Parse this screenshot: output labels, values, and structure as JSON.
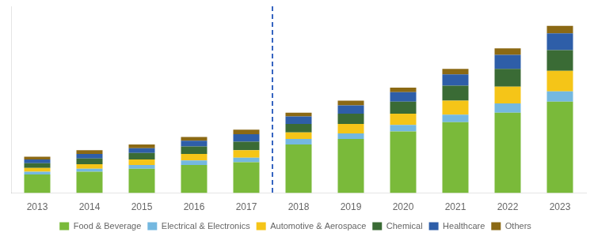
{
  "chart_data": {
    "type": "bar",
    "stacked": true,
    "categories": [
      "2013",
      "2014",
      "2015",
      "2016",
      "2017",
      "2018",
      "2019",
      "2020",
      "2021",
      "2022",
      "2023"
    ],
    "series": [
      {
        "name": "Food & Beverage",
        "color": "#7aba3a",
        "values": [
          20,
          23,
          26,
          30,
          33,
          52,
          58,
          66,
          76,
          86,
          98
        ]
      },
      {
        "name": "Electrical & Electronics",
        "color": "#74b8e0",
        "values": [
          3,
          3,
          4,
          5,
          5,
          6,
          6,
          7,
          8,
          10,
          11
        ]
      },
      {
        "name": "Automotive & Aerospace",
        "color": "#f5c518",
        "values": [
          4,
          5,
          6,
          7,
          8,
          7,
          10,
          12,
          15,
          18,
          22
        ]
      },
      {
        "name": "Chemical",
        "color": "#3a6b35",
        "values": [
          5,
          6,
          7,
          8,
          9,
          9,
          11,
          13,
          16,
          19,
          22
        ]
      },
      {
        "name": "Healthcare",
        "color": "#2e5ea8",
        "values": [
          4,
          5,
          5,
          6,
          8,
          8,
          9,
          10,
          12,
          15,
          18
        ]
      },
      {
        "name": "Others",
        "color": "#8b6914",
        "values": [
          3,
          4,
          4,
          4,
          5,
          4,
          5,
          5,
          6,
          7,
          8
        ]
      }
    ],
    "ylim": [
      0,
      200
    ],
    "tick_labels": "x",
    "grid": false,
    "legend": "bottom",
    "divider": {
      "after": "2017",
      "color": "#2255bb",
      "line_style": "dashed"
    }
  }
}
